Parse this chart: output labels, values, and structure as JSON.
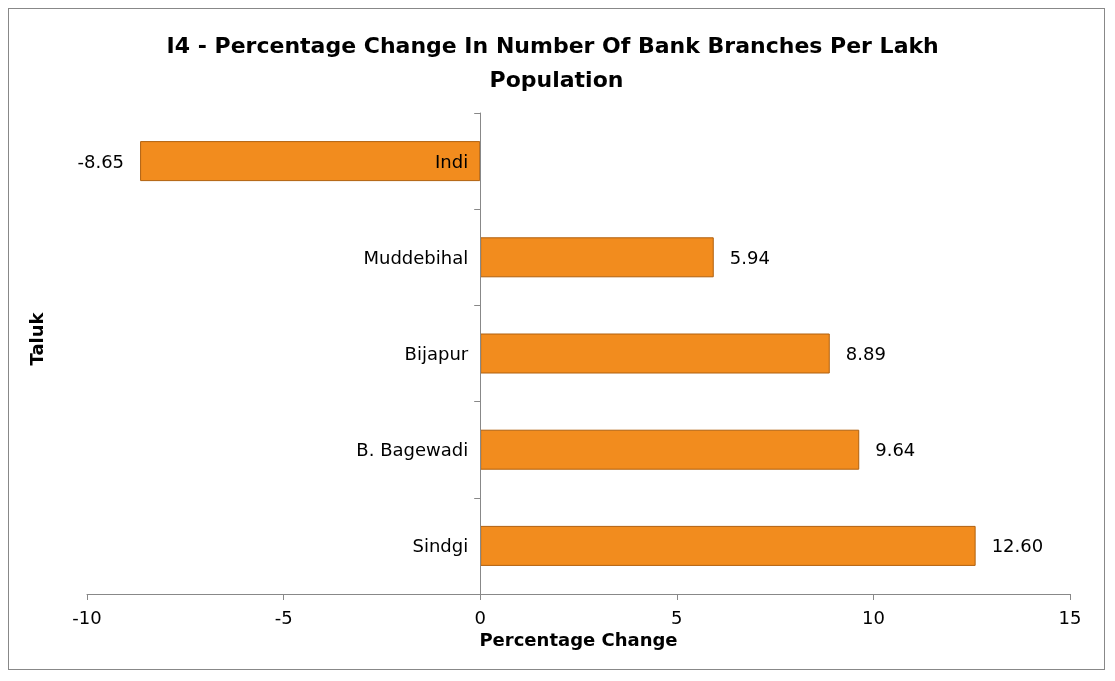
{
  "chart_data": {
    "type": "bar",
    "orientation": "horizontal",
    "title": "I4 - Percentage Change In Number Of Bank Branches Per Lakh Population",
    "xlabel": "Percentage Change",
    "ylabel": "Taluk",
    "categories": [
      "Indi",
      "Muddebihal",
      "Bijapur",
      "B. Bagewadi",
      "Sindgi"
    ],
    "values": [
      -8.65,
      5.94,
      8.89,
      9.64,
      12.6
    ],
    "value_labels": [
      "-8.65",
      "5.94",
      "8.89",
      "9.64",
      "12.60"
    ],
    "color": "#f28c1e",
    "xlim": [
      -10,
      15
    ],
    "xticks": [
      -10,
      -5,
      0,
      5,
      10,
      15
    ]
  }
}
